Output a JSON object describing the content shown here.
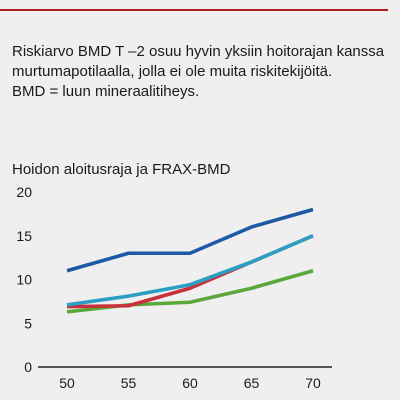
{
  "header": {
    "accent_color": "#b21a20"
  },
  "description": {
    "lines": [
      "Riskiarvo BMD T –2 osuu hyvin yksiin hoitorajan kanssa",
      "murtumapotilaalla, jolla ei ole muita riskitekijöitä.",
      "BMD = luun mineraalitiheys."
    ]
  },
  "chart_data": {
    "type": "line",
    "title": "Hoidon aloitusraja ja FRAX-BMD",
    "xlabel": "",
    "ylabel": "",
    "x": [
      50,
      55,
      60,
      65,
      70
    ],
    "xlim": [
      50,
      70
    ],
    "ylim": [
      0,
      20
    ],
    "yticks": [
      0,
      5,
      10,
      15,
      20
    ],
    "grid": false,
    "legend": "none",
    "axis_color": "#222222",
    "series": [
      {
        "color": "#5aa83a",
        "values": [
          6.3,
          7.1,
          7.4,
          9,
          11
        ]
      },
      {
        "color": "#c8313c",
        "values": [
          6.9,
          7,
          9,
          12,
          15
        ]
      },
      {
        "color": "#2b9fc3",
        "values": [
          7.1,
          8.1,
          9.4,
          12,
          15
        ]
      },
      {
        "color": "#1c5aa6",
        "values": [
          11,
          13,
          13,
          16,
          18
        ]
      }
    ]
  }
}
